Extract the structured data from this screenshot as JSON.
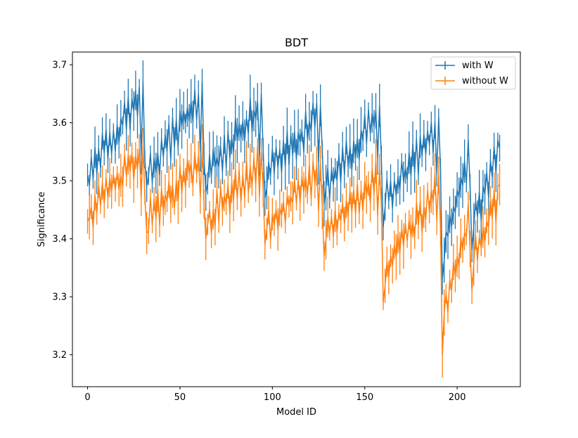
{
  "chart_data": {
    "type": "line",
    "title": "BDT",
    "xlabel": "Model ID",
    "ylabel": "Significance",
    "xlim": [
      -8.2,
      234.2
    ],
    "ylim": [
      3.145,
      3.722
    ],
    "x_ticks": [
      0,
      50,
      100,
      150,
      200
    ],
    "y_ticks": [
      3.2,
      3.3,
      3.4,
      3.5,
      3.6,
      3.7
    ],
    "grid": false,
    "legend_position": "upper right",
    "error_bars": true,
    "series": [
      {
        "name": "with W",
        "color": "#1f77b4",
        "block_size": 32,
        "blocks": [
          {
            "start": 0,
            "end": 31,
            "drop": 3.51,
            "base": 3.52,
            "peak": 3.68,
            "final": 3.57
          },
          {
            "start": 32,
            "end": 63,
            "drop": 3.49,
            "base": 3.51,
            "peak": 3.68,
            "final": 3.57
          },
          {
            "start": 64,
            "end": 95,
            "drop": 3.48,
            "base": 3.51,
            "peak": 3.66,
            "final": 3.57
          },
          {
            "start": 96,
            "end": 127,
            "drop": 3.47,
            "base": 3.51,
            "peak": 3.64,
            "final": 3.56
          },
          {
            "start": 128,
            "end": 159,
            "drop": 3.46,
            "base": 3.49,
            "peak": 3.64,
            "final": 3.55
          },
          {
            "start": 160,
            "end": 191,
            "drop": 3.42,
            "base": 3.46,
            "peak": 3.62,
            "final": 3.53
          },
          {
            "start": 192,
            "end": 207,
            "drop": 3.33,
            "base": 3.38,
            "peak": 3.58,
            "final": 3.52
          },
          {
            "start": 208,
            "end": 223,
            "drop": 3.38,
            "base": 3.42,
            "peak": 3.58,
            "final": 3.57
          }
        ]
      },
      {
        "name": "without W",
        "color": "#ff7f0e",
        "block_size": 32,
        "blocks": [
          {
            "start": 0,
            "end": 31,
            "drop": 3.43,
            "base": 3.44,
            "peak": 3.57,
            "final": 3.5
          },
          {
            "start": 32,
            "end": 63,
            "drop": 3.41,
            "base": 3.43,
            "peak": 3.57,
            "final": 3.49
          },
          {
            "start": 64,
            "end": 95,
            "drop": 3.4,
            "base": 3.43,
            "peak": 3.56,
            "final": 3.49
          },
          {
            "start": 96,
            "end": 127,
            "drop": 3.39,
            "base": 3.42,
            "peak": 3.54,
            "final": 3.48
          },
          {
            "start": 128,
            "end": 159,
            "drop": 3.37,
            "base": 3.41,
            "peak": 3.53,
            "final": 3.47
          },
          {
            "start": 160,
            "end": 191,
            "drop": 3.29,
            "base": 3.34,
            "peak": 3.52,
            "final": 3.45
          },
          {
            "start": 192,
            "end": 207,
            "drop": 3.2,
            "base": 3.27,
            "peak": 3.47,
            "final": 3.4
          },
          {
            "start": 208,
            "end": 223,
            "drop": 3.31,
            "base": 3.36,
            "peak": 3.5,
            "final": 3.5
          }
        ]
      }
    ]
  }
}
